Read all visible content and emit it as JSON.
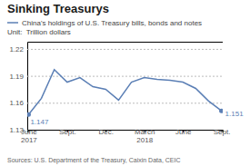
{
  "chart_data": {
    "type": "line",
    "title": "Sinking Treasurys",
    "y_label": "Unit:  Trillion dollars",
    "source": "Sources: U.S. Department of the Treasury, Caixin Data, CEIC",
    "categories": [
      "June\n2017",
      null,
      null,
      "Sept.",
      null,
      null,
      "Dec.",
      null,
      null,
      "March\n2018",
      null,
      null,
      "June",
      null,
      null,
      "Sept."
    ],
    "series": [
      {
        "name": "China's holdings of U.S. Treasury bills, bonds and notes",
        "color": "#5b7fb5",
        "values": [
          1.147,
          1.165,
          1.197,
          1.183,
          1.188,
          1.178,
          1.175,
          1.163,
          1.183,
          1.188,
          1.186,
          1.185,
          1.183,
          1.176,
          1.162,
          1.151
        ]
      }
    ],
    "ylim": [
      1.13,
      1.228
    ],
    "yticks": [
      1.13,
      1.16,
      1.19,
      1.22
    ],
    "grid": true,
    "legend": "top-left",
    "annotations": [
      {
        "text": "1.147",
        "x": 0,
        "y": 1.147
      },
      {
        "text": "1.151",
        "x": 15,
        "y": 1.151
      }
    ]
  }
}
